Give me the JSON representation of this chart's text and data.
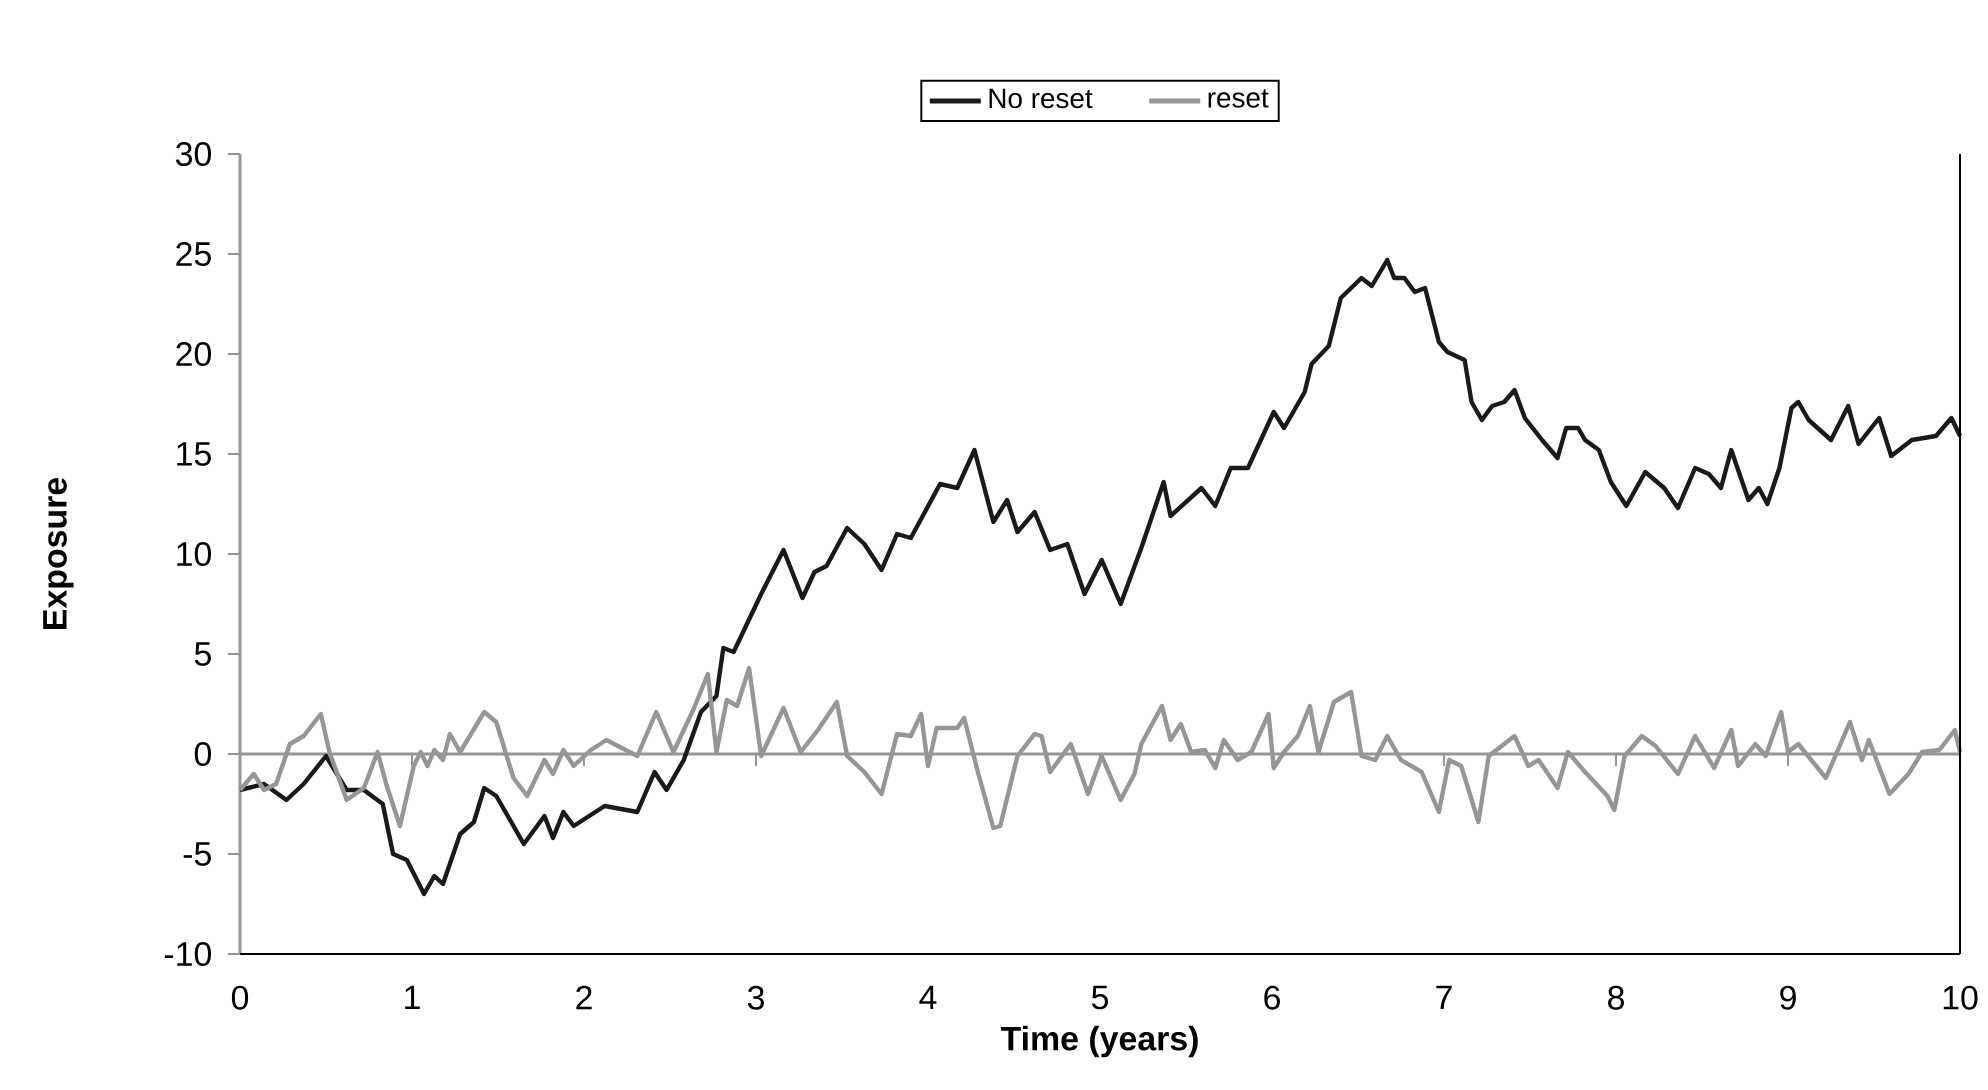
{
  "chart_data": {
    "type": "line",
    "xlabel": "Time (years)",
    "ylabel": "Exposure",
    "xlim": [
      0,
      10
    ],
    "ylim": [
      -10,
      30
    ],
    "xticks": [
      0,
      1,
      2,
      3,
      4,
      5,
      6,
      7,
      8,
      9,
      10
    ],
    "yticks": [
      -10,
      -5,
      0,
      5,
      10,
      15,
      20,
      25,
      30
    ],
    "legend": "top",
    "marker": "none",
    "line_style": "solid",
    "series": [
      {
        "name": "No reset",
        "color": "#1a1a1a",
        "x": [
          0,
          0.14,
          0.27,
          0.37,
          0.5,
          0.62,
          0.72,
          0.83,
          0.89,
          0.97,
          1.07,
          1.13,
          1.18,
          1.28,
          1.36,
          1.42,
          1.49,
          1.65,
          1.77,
          1.82,
          1.88,
          1.94,
          2.12,
          2.31,
          2.41,
          2.48,
          2.58,
          2.68,
          2.77,
          2.81,
          2.87,
          3.03,
          3.16,
          3.27,
          3.34,
          3.41,
          3.53,
          3.63,
          3.73,
          3.82,
          3.9,
          4.07,
          4.17,
          4.27,
          4.38,
          4.46,
          4.52,
          4.62,
          4.71,
          4.81,
          4.91,
          5.01,
          5.12,
          5.24,
          5.37,
          5.41,
          5.59,
          5.67,
          5.76,
          5.86,
          6.01,
          6.07,
          6.19,
          6.23,
          6.33,
          6.4,
          6.52,
          6.58,
          6.67,
          6.71,
          6.77,
          6.83,
          6.89,
          6.97,
          7.02,
          7.12,
          7.16,
          7.22,
          7.28,
          7.35,
          7.41,
          7.47,
          7.57,
          7.66,
          7.71,
          7.78,
          7.82,
          7.9,
          7.97,
          8.06,
          8.17,
          8.28,
          8.36,
          8.46,
          8.54,
          8.61,
          8.67,
          8.77,
          8.83,
          8.88,
          8.95,
          9.02,
          9.06,
          9.12,
          9.25,
          9.35,
          9.41,
          9.53,
          9.6,
          9.72,
          9.86,
          9.95,
          10
        ],
        "values": [
          -1.8,
          -1.5,
          -2.3,
          -1.5,
          -0.1,
          -1.8,
          -1.8,
          -2.5,
          -5.0,
          -5.3,
          -7.0,
          -6.1,
          -6.5,
          -4.0,
          -3.4,
          -1.7,
          -2.1,
          -4.5,
          -3.1,
          -4.2,
          -2.9,
          -3.6,
          -2.6,
          -2.9,
          -0.9,
          -1.8,
          -0.3,
          2.1,
          2.9,
          5.3,
          5.1,
          8.0,
          10.2,
          7.8,
          9.1,
          9.4,
          11.3,
          10.5,
          9.2,
          11.0,
          10.8,
          13.5,
          13.3,
          15.2,
          11.6,
          12.7,
          11.1,
          12.1,
          10.2,
          10.5,
          8.0,
          9.7,
          7.5,
          10.3,
          13.6,
          11.9,
          13.3,
          12.4,
          14.3,
          14.3,
          17.1,
          16.3,
          18.1,
          19.5,
          20.4,
          22.8,
          23.8,
          23.4,
          24.7,
          23.8,
          23.8,
          23.1,
          23.3,
          20.6,
          20.1,
          19.7,
          17.6,
          16.7,
          17.4,
          17.6,
          18.2,
          16.8,
          15.7,
          14.8,
          16.3,
          16.3,
          15.7,
          15.2,
          13.6,
          12.4,
          14.1,
          13.3,
          12.3,
          14.3,
          14.0,
          13.3,
          15.2,
          12.7,
          13.3,
          12.5,
          14.3,
          17.3,
          17.6,
          16.7,
          15.7,
          17.4,
          15.5,
          16.8,
          14.9,
          15.7,
          15.9,
          16.8,
          15.9
        ]
      },
      {
        "name": "reset",
        "color": "#969696",
        "x": [
          0,
          0.08,
          0.14,
          0.21,
          0.29,
          0.37,
          0.47,
          0.52,
          0.62,
          0.72,
          0.8,
          0.85,
          0.93,
          1.01,
          1.05,
          1.09,
          1.13,
          1.18,
          1.22,
          1.28,
          1.42,
          1.49,
          1.59,
          1.67,
          1.77,
          1.82,
          1.88,
          1.94,
          2.04,
          2.13,
          2.31,
          2.42,
          2.52,
          2.64,
          2.72,
          2.77,
          2.83,
          2.89,
          2.96,
          3.03,
          3.16,
          3.26,
          3.36,
          3.47,
          3.53,
          3.63,
          3.73,
          3.82,
          3.9,
          3.96,
          4.0,
          4.05,
          4.17,
          4.21,
          4.29,
          4.38,
          4.42,
          4.52,
          4.62,
          4.66,
          4.71,
          4.83,
          4.93,
          5.01,
          5.12,
          5.2,
          5.24,
          5.36,
          5.41,
          5.47,
          5.53,
          5.61,
          5.67,
          5.72,
          5.8,
          5.88,
          5.98,
          6.01,
          6.07,
          6.15,
          6.22,
          6.27,
          6.36,
          6.46,
          6.52,
          6.6,
          6.67,
          6.75,
          6.87,
          6.97,
          7.03,
          7.1,
          7.2,
          7.26,
          7.41,
          7.49,
          7.55,
          7.66,
          7.72,
          7.82,
          7.95,
          7.99,
          8.05,
          8.15,
          8.23,
          8.36,
          8.46,
          8.57,
          8.67,
          8.71,
          8.81,
          8.87,
          8.96,
          9.0,
          9.06,
          9.22,
          9.36,
          9.43,
          9.47,
          9.59,
          9.7,
          9.78,
          9.88,
          9.97,
          10
        ],
        "values": [
          -1.8,
          -1.0,
          -1.8,
          -1.5,
          0.5,
          0.9,
          2.0,
          0.1,
          -2.3,
          -1.7,
          0.1,
          -1.5,
          -3.6,
          -0.6,
          0.1,
          -0.6,
          0.2,
          -0.3,
          1.0,
          0.1,
          2.1,
          1.6,
          -1.2,
          -2.1,
          -0.3,
          -1.0,
          0.2,
          -0.6,
          0.2,
          0.7,
          -0.1,
          2.1,
          0.1,
          2.3,
          4.0,
          0.1,
          2.7,
          2.4,
          4.3,
          -0.1,
          2.3,
          0.1,
          1.2,
          2.6,
          -0.1,
          -0.9,
          -2.0,
          1.0,
          0.9,
          2.0,
          -0.6,
          1.3,
          1.3,
          1.8,
          -0.9,
          -3.7,
          -3.6,
          -0.1,
          1.0,
          0.9,
          -0.9,
          0.5,
          -2.0,
          -0.1,
          -2.3,
          -1.0,
          0.5,
          2.4,
          0.7,
          1.5,
          0.1,
          0.2,
          -0.7,
          0.7,
          -0.3,
          0.1,
          2.0,
          -0.7,
          0.1,
          0.9,
          2.4,
          0.1,
          2.6,
          3.1,
          -0.1,
          -0.3,
          0.9,
          -0.3,
          -0.9,
          -2.9,
          -0.3,
          -0.6,
          -3.4,
          -0.1,
          0.9,
          -0.6,
          -0.3,
          -1.7,
          0.1,
          -0.9,
          -2.1,
          -2.8,
          -0.1,
          0.9,
          0.4,
          -1.0,
          0.9,
          -0.7,
          1.2,
          -0.6,
          0.5,
          -0.1,
          2.1,
          0.1,
          0.5,
          -1.2,
          1.6,
          -0.3,
          0.7,
          -2.0,
          -1.0,
          0.1,
          0.2,
          1.2,
          0.1
        ]
      }
    ]
  }
}
